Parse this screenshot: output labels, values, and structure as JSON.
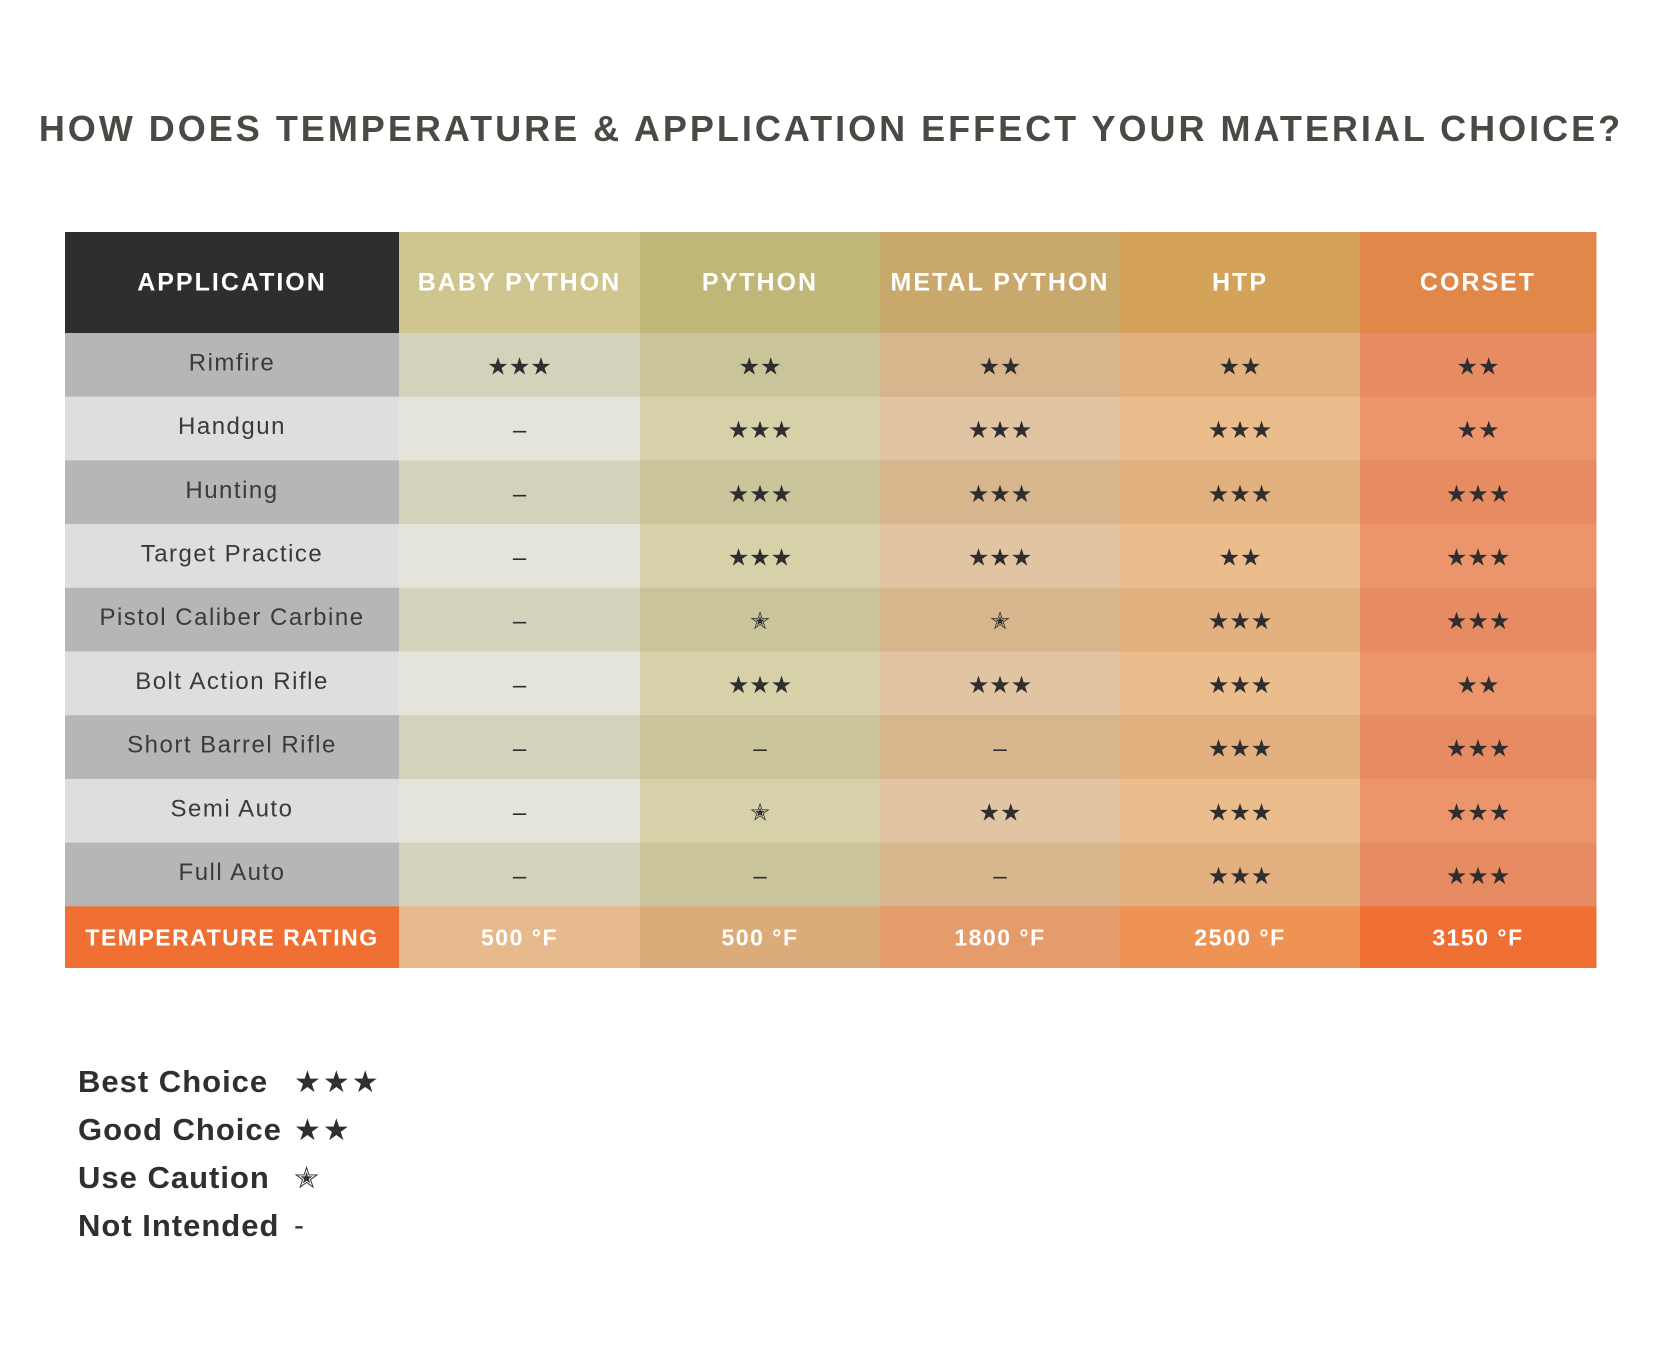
{
  "title": "HOW DOES TEMPERATURE & APPLICATION EFFECT YOUR MATERIAL CHOICE?",
  "chart_data": {
    "type": "table",
    "header_label": "APPLICATION",
    "columns": [
      {
        "name": "BABY PYTHON",
        "header_color": "#cfc58f",
        "odd_color": "#d3d2bb",
        "even_color": "#e4e4da",
        "temp_color": "#e6ba8d"
      },
      {
        "name": "PYTHON",
        "header_color": "#bfb677",
        "odd_color": "#c9c49a",
        "even_color": "#d6d1a8",
        "temp_color": "#dbab7a"
      },
      {
        "name": "METAL PYTHON",
        "header_color": "#c9a86c",
        "odd_color": "#d7b68d",
        "even_color": "#e1c4a1",
        "temp_color": "#e59b6a"
      },
      {
        "name": "HTP",
        "header_color": "#d4a259",
        "odd_color": "#e3b07f",
        "even_color": "#ebbd8d",
        "temp_color": "#ef9355"
      },
      {
        "name": "CORSET",
        "header_color": "#e1874a",
        "odd_color": "#e68b62",
        "even_color": "#ec956c",
        "temp_color": "#f06f33"
      }
    ],
    "rows": [
      {
        "application": "Rimfire",
        "ratings": [
          "★★★",
          "★★",
          "★★",
          "★★",
          "★★"
        ]
      },
      {
        "application": "Handgun",
        "ratings": [
          "–",
          "★★★",
          "★★★",
          "★★★",
          "★★"
        ]
      },
      {
        "application": "Hunting",
        "ratings": [
          "–",
          "★★★",
          "★★★",
          "★★★",
          "★★★"
        ]
      },
      {
        "application": "Target Practice",
        "ratings": [
          "–",
          "★★★",
          "★★★",
          "★★",
          "★★★"
        ]
      },
      {
        "application": "Pistol Caliber Carbine",
        "ratings": [
          "–",
          "✭",
          "✭",
          "★★★",
          "★★★"
        ]
      },
      {
        "application": "Bolt Action Rifle",
        "ratings": [
          "–",
          "★★★",
          "★★★",
          "★★★",
          "★★"
        ]
      },
      {
        "application": "Short Barrel Rifle",
        "ratings": [
          "–",
          "–",
          "–",
          "★★★",
          "★★★"
        ]
      },
      {
        "application": "Semi Auto",
        "ratings": [
          "–",
          "✭",
          "★★",
          "★★★",
          "★★★"
        ]
      },
      {
        "application": "Full Auto",
        "ratings": [
          "–",
          "–",
          "–",
          "★★★",
          "★★★"
        ]
      }
    ],
    "footer": {
      "label": "TEMPERATURE RATING",
      "values": [
        "500 °F",
        "500 °F",
        "1800 °F",
        "2500 °F",
        "3150 °F"
      ]
    },
    "colors": {
      "header_application": "#2e2e2e",
      "app_odd": "#b6b6b6",
      "app_even": "#dedede",
      "footer_label": "#f06f33"
    }
  },
  "legend": [
    {
      "label": "Best Choice",
      "symbol": "★★★"
    },
    {
      "label": "Good Choice",
      "symbol": "★★"
    },
    {
      "label": "Use Caution",
      "symbol": "✭"
    },
    {
      "label": "Not Intended",
      "symbol": "-"
    }
  ]
}
